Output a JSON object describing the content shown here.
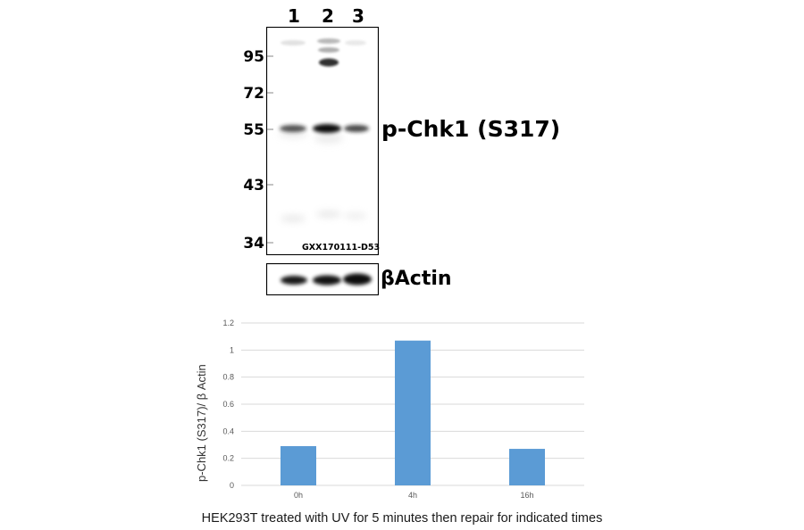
{
  "western_blot": {
    "lanes": [
      "1",
      "2",
      "3"
    ],
    "markers": [
      "95",
      "72",
      "55",
      "43",
      "34"
    ],
    "target_label": "p-Chk1 (S317)",
    "blot_id": "GXX170111-D53",
    "loading_control_label": "βActin"
  },
  "chart_data": {
    "type": "bar",
    "categories": [
      "0h",
      "4h",
      "16h"
    ],
    "values": [
      0.29,
      1.07,
      0.27
    ],
    "ylabel": "p-Chk1 (S317)/ β Actin",
    "xlabel": "",
    "ylim": [
      0,
      1.2
    ],
    "yticks": [
      "0",
      "0.2",
      "0.4",
      "0.6",
      "0.8",
      "1",
      "1.2"
    ],
    "grid": true,
    "bar_color": "#5b9bd5",
    "grid_color": "#d9d9d9"
  },
  "caption": "HEK293T treated with UV for 5 minutes then repair for indicated times"
}
